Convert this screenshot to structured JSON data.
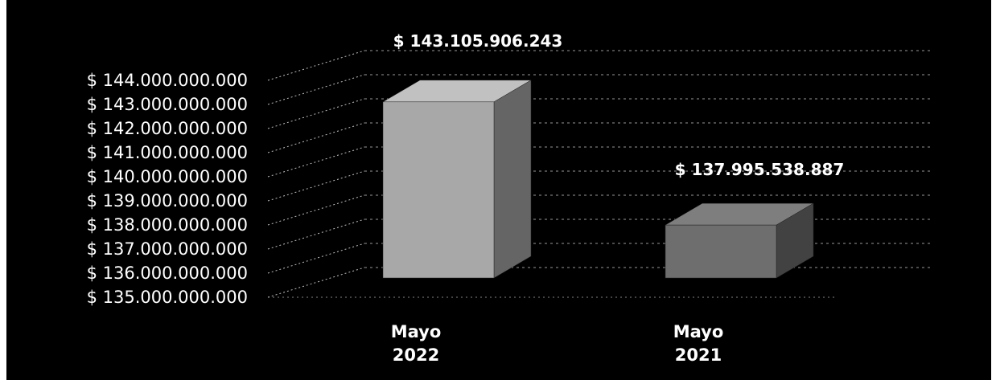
{
  "chart_data": {
    "type": "bar",
    "categories": [
      "Mayo 2022",
      "Mayo 2021"
    ],
    "category_lines": [
      [
        "Mayo",
        "2022"
      ],
      [
        "Mayo",
        "2021"
      ]
    ],
    "series": [
      {
        "values": [
          143105906243,
          137995538887
        ]
      }
    ],
    "data_labels": [
      "$ 143.105.906.243",
      "$ 137.995.538.887"
    ],
    "y_ticks": [
      "$ 135.000.000.000",
      "$ 136.000.000.000",
      "$ 137.000.000.000",
      "$ 138.000.000.000",
      "$ 139.000.000.000",
      "$ 140.000.000.000",
      "$ 141.000.000.000",
      "$ 142.000.000.000",
      "$ 143.000.000.000",
      "$ 144.000.000.000"
    ],
    "ylim": [
      135000000000,
      144000000000
    ],
    "grid": true,
    "legend": "none",
    "style": "3d-column",
    "colors": {
      "background": "#000000",
      "bar_2022": "#a8a8a8",
      "bar_2021": "#6e6e6e",
      "text": "#ffffff",
      "grid": "#bdbdbd"
    },
    "title": "",
    "xlabel": "",
    "ylabel": ""
  }
}
